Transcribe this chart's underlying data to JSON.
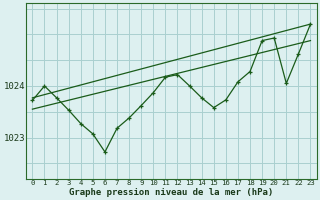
{
  "background_color": "#ddf0f0",
  "grid_color": "#aacfcf",
  "line_color": "#1a5c1a",
  "xlabel": "Graphe pression niveau de la mer (hPa)",
  "xlim": [
    -0.5,
    23.5
  ],
  "ylim": [
    1022.2,
    1025.6
  ],
  "yticks": [
    1023,
    1024
  ],
  "xticks": [
    0,
    1,
    2,
    3,
    4,
    5,
    6,
    7,
    8,
    9,
    10,
    11,
    12,
    13,
    14,
    15,
    16,
    17,
    18,
    19,
    20,
    21,
    22,
    23
  ],
  "main_x": [
    0,
    1,
    2,
    3,
    4,
    5,
    6,
    7,
    8,
    9,
    10,
    11,
    12,
    13,
    14,
    15,
    16,
    17,
    18,
    19,
    20,
    21,
    22,
    23
  ],
  "main_y": [
    1023.72,
    1024.0,
    1023.77,
    1023.53,
    1023.27,
    1023.07,
    1022.72,
    1023.18,
    1023.38,
    1023.62,
    1023.87,
    1024.17,
    1024.22,
    1024.0,
    1023.77,
    1023.58,
    1023.73,
    1024.08,
    1024.28,
    1024.88,
    1024.93,
    1024.05,
    1024.62,
    1025.2
  ],
  "trend_line1_x": [
    0,
    23
  ],
  "trend_line1_y": [
    1023.55,
    1024.88
  ],
  "trend_line2_x": [
    0,
    23
  ],
  "trend_line2_y": [
    1023.77,
    1025.2
  ],
  "ylabel_fontsize": 6.0,
  "xlabel_fontsize": 6.5,
  "xtick_fontsize": 5.2,
  "ytick_fontsize": 6.5
}
